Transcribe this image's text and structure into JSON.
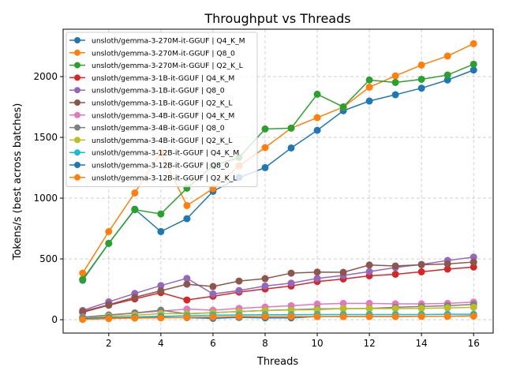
{
  "chart_data": {
    "type": "line",
    "title": "Throughput vs Threads",
    "xlabel": "Threads",
    "ylabel": "Tokens/s (best across batches)",
    "xlim": [
      0.25,
      16.75
    ],
    "ylim": [
      -110,
      2390
    ],
    "xticks": [
      2,
      4,
      6,
      8,
      10,
      12,
      14,
      16
    ],
    "yticks": [
      0,
      500,
      1000,
      1500,
      2000
    ],
    "grid": true,
    "legend_position": "top-left",
    "x": [
      1,
      2,
      3,
      4,
      5,
      6,
      7,
      8,
      9,
      10,
      11,
      12,
      13,
      14,
      15,
      16
    ],
    "series": [
      {
        "name": "unsloth/gemma-3-270M-it-GGUF | Q4_K_M",
        "color": "#1f77b4",
        "values": [
          325,
          628,
          909,
          725,
          831,
          1056,
          1170,
          1251,
          1413,
          1558,
          1719,
          1799,
          1851,
          1905,
          1972,
          2054
        ]
      },
      {
        "name": "unsloth/gemma-3-270M-it-GGUF | Q8_0",
        "color": "#ff7f0e",
        "values": [
          383,
          725,
          1043,
          1374,
          939,
          1078,
          1266,
          1416,
          1576,
          1662,
          1749,
          1913,
          2006,
          2095,
          2169,
          2271
        ]
      },
      {
        "name": "unsloth/gemma-3-270M-it-GGUF | Q2_K_L",
        "color": "#2ca02c",
        "values": [
          331,
          628,
          905,
          870,
          1082,
          1266,
          1335,
          1569,
          1576,
          1855,
          1751,
          1972,
          1952,
          1978,
          2013,
          2102
        ]
      },
      {
        "name": "unsloth/gemma-3-1B-it-GGUF | Q4_K_M",
        "color": "#d62728",
        "values": [
          61,
          119,
          171,
          223,
          162,
          193,
          227,
          253,
          277,
          314,
          335,
          361,
          374,
          394,
          416,
          433
        ]
      },
      {
        "name": "unsloth/gemma-3-1B-it-GGUF | Q8_0",
        "color": "#9467bd",
        "values": [
          76,
          147,
          216,
          281,
          340,
          212,
          240,
          277,
          301,
          340,
          364,
          396,
          429,
          455,
          487,
          515
        ]
      },
      {
        "name": "unsloth/gemma-3-1B-it-GGUF | Q2_K_L",
        "color": "#8c564b",
        "values": [
          67,
          123,
          184,
          238,
          292,
          273,
          318,
          338,
          383,
          392,
          390,
          450,
          442,
          452,
          459,
          474
        ]
      },
      {
        "name": "unsloth/gemma-3-4B-it-GGUF | Q4_K_M",
        "color": "#e377c2",
        "values": [
          22,
          37,
          54,
          71,
          87,
          78,
          93,
          104,
          115,
          128,
          134,
          134,
          130,
          130,
          134,
          145
        ]
      },
      {
        "name": "unsloth/gemma-3-4B-it-GGUF | Q8_0",
        "color": "#7f7f7f",
        "values": [
          17,
          39,
          56,
          78,
          48,
          58,
          67,
          76,
          82,
          89,
          91,
          93,
          102,
          108,
          115,
          126
        ]
      },
      {
        "name": "unsloth/gemma-3-4B-it-GGUF | Q2_K_L",
        "color": "#bcbd22",
        "values": [
          11,
          26,
          37,
          50,
          50,
          58,
          67,
          76,
          80,
          82,
          91,
          91,
          91,
          93,
          97,
          102
        ]
      },
      {
        "name": "unsloth/gemma-3-12B-it-GGUF | Q4_K_M",
        "color": "#17becf",
        "values": [
          11,
          17,
          22,
          28,
          32,
          37,
          39,
          41,
          41,
          43,
          43,
          43,
          43,
          43,
          45,
          45
        ]
      },
      {
        "name": "unsloth/gemma-3-12B-it-GGUF | Q8_0",
        "color": "#1f77b4",
        "values": [
          6,
          15,
          17,
          19,
          17,
          11,
          19,
          15,
          15,
          26,
          26,
          26,
          26,
          28,
          28,
          32
        ]
      },
      {
        "name": "unsloth/gemma-3-12B-it-GGUF | Q2_K_L",
        "color": "#ff7f0e",
        "values": [
          2,
          9,
          13,
          15,
          19,
          22,
          26,
          26,
          26,
          26,
          26,
          26,
          26,
          28,
          28,
          30
        ]
      }
    ]
  }
}
